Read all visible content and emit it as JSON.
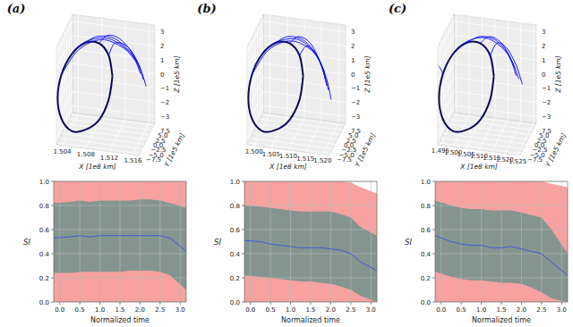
{
  "chart_data": [
    {
      "type": "line3d",
      "title": "(a)",
      "x_label": "X [1e8 km]",
      "y_label": "Y [1e5 km]",
      "z_label": "Z [1e5 km]",
      "xlim": [
        1.503,
        1.517
      ],
      "ylim": [
        -8.5,
        8.5
      ],
      "zlim": [
        -3.5,
        3.5
      ],
      "xticks": [
        1.504,
        1.508,
        1.512,
        1.516
      ],
      "yticks": [
        {
          "value": -7.5,
          "label": "−7.5"
        },
        {
          "value": -5,
          "label": "−5.0"
        },
        {
          "value": -2.5,
          "label": "−2.5"
        },
        {
          "value": 0,
          "label": "0.0"
        },
        2.5,
        {
          "value": 5,
          "label": "5.0"
        },
        7.5
      ],
      "zticks": [
        {
          "value": -3,
          "label": "−3"
        },
        {
          "value": -2,
          "label": "−2"
        },
        {
          "value": -1,
          "label": "−1"
        },
        0,
        1,
        2,
        3
      ],
      "grid": true,
      "series": [
        {
          "color": "#0a0a5a",
          "x": [
            1.51,
            1.5095,
            1.5083,
            1.5065,
            1.5048,
            1.5035,
            1.503,
            1.5035,
            1.5048,
            1.5065,
            1.5083,
            1.5095,
            1.51
          ],
          "y": [
            7.2,
            6.26,
            3.61,
            0,
            -3.61,
            -6.26,
            -7.2,
            -6.26,
            -3.61,
            0,
            3.61,
            6.26,
            7.2
          ],
          "z": [
            -0.35,
            1.23,
            2.38,
            2.8,
            2.38,
            1.23,
            -0.35,
            -1.93,
            -3.08,
            -3.4,
            -3.08,
            -1.93,
            -0.35
          ]
        },
        {
          "color": "#0000ff",
          "x": [
            1.5083,
            1.51,
            1.5125,
            1.515,
            1.5165
          ],
          "y": [
            3.61,
            2.5,
            1.0,
            0.0,
            -0.5
          ],
          "z": [
            2.38,
            3.2,
            3.2,
            2.2,
            0.8
          ]
        },
        {
          "color": "#0000ff",
          "x": [
            1.5065,
            1.5085,
            1.5115,
            1.5145,
            1.516
          ],
          "y": [
            0,
            0.5,
            0.5,
            0.0,
            -0.5
          ],
          "z": [
            2.8,
            3.3,
            3.3,
            2.4,
            1.2
          ]
        },
        {
          "color": "#0000ff",
          "x": [
            1.5048,
            1.507,
            1.5105,
            1.514,
            1.5158
          ],
          "y": [
            -3.61,
            -2.0,
            -0.5,
            0.0,
            0.3
          ],
          "z": [
            2.38,
            3.2,
            3.4,
            2.6,
            1.5
          ]
        },
        {
          "color": "#0000ff",
          "x": [
            1.5035,
            1.506,
            1.5095,
            1.513,
            1.515
          ],
          "y": [
            -6.26,
            -4.0,
            -1.5,
            0.0,
            1.0
          ],
          "z": [
            1.23,
            2.8,
            3.4,
            2.8,
            1.8
          ]
        },
        {
          "color": "#0000ff",
          "x": [
            1.5095,
            1.511,
            1.5135,
            1.5155,
            1.5168
          ],
          "y": [
            6.26,
            4.0,
            2.0,
            1.0,
            0.5
          ],
          "z": [
            1.23,
            2.5,
            2.6,
            1.6,
            0.2
          ]
        }
      ]
    },
    {
      "type": "line3d",
      "title": "(b)",
      "x_label": "X [1e8 km]",
      "y_label": "Y [1e5 km]",
      "z_label": "Z [1e5 km]",
      "xlim": [
        1.498,
        1.522
      ],
      "ylim": [
        -8.5,
        8.5
      ],
      "zlim": [
        -3.5,
        3.5
      ],
      "xticks": [
        {
          "value": 1.5,
          "label": "1.500"
        },
        1.505,
        {
          "value": 1.51,
          "label": "1.510"
        },
        1.515,
        {
          "value": 1.52,
          "label": "1.520"
        }
      ],
      "yticks": [
        {
          "value": -7.5,
          "label": "−7.5"
        },
        {
          "value": -5,
          "label": "−5.0"
        },
        {
          "value": -2.5,
          "label": "−2.5"
        },
        {
          "value": 0,
          "label": "0.0"
        },
        2.5,
        {
          "value": 5,
          "label": "5.0"
        },
        7.5
      ],
      "zticks": [
        {
          "value": -3,
          "label": "−3"
        },
        {
          "value": -2,
          "label": "−2"
        },
        {
          "value": -1,
          "label": "−1"
        },
        0,
        1,
        2,
        3
      ],
      "grid": true,
      "series": [
        {
          "color": "#0a0a5a",
          "x": [
            1.51,
            1.5092,
            1.507,
            1.504,
            1.501,
            1.4988,
            1.498,
            1.4988,
            1.501,
            1.504,
            1.507,
            1.5092,
            1.51
          ],
          "y": [
            7.2,
            6.26,
            3.61,
            0,
            -3.61,
            -6.26,
            -7.2,
            -6.26,
            -3.61,
            0,
            3.61,
            6.26,
            7.2
          ],
          "z": [
            -0.35,
            1.23,
            2.38,
            2.8,
            2.38,
            1.23,
            -0.35,
            -1.93,
            -3.08,
            -3.4,
            -3.08,
            -1.93,
            -0.35
          ]
        },
        {
          "color": "#0000ff",
          "x": [
            1.507,
            1.51,
            1.514,
            1.5175,
            1.5195
          ],
          "y": [
            3.61,
            2.5,
            1.0,
            0.0,
            -0.5
          ],
          "z": [
            2.38,
            3.1,
            2.9,
            1.5,
            0.0
          ]
        },
        {
          "color": "#0000ff",
          "x": [
            1.504,
            1.5075,
            1.5125,
            1.517,
            1.519
          ],
          "y": [
            0,
            0.5,
            0.5,
            0.0,
            -0.5
          ],
          "z": [
            2.8,
            3.3,
            3.1,
            1.8,
            0.3
          ]
        },
        {
          "color": "#0000ff",
          "x": [
            1.501,
            1.505,
            1.511,
            1.516,
            1.5185
          ],
          "y": [
            -3.61,
            -2.0,
            -0.5,
            0.0,
            0.3
          ],
          "z": [
            2.38,
            3.2,
            3.3,
            2.2,
            0.6
          ]
        },
        {
          "color": "#0000ff",
          "x": [
            1.4988,
            1.503,
            1.509,
            1.515,
            1.518
          ],
          "y": [
            -6.26,
            -4.0,
            -1.5,
            0.0,
            1.0
          ],
          "z": [
            1.23,
            2.8,
            3.3,
            2.5,
            1.0
          ]
        },
        {
          "color": "#0000ff",
          "x": [
            1.5092,
            1.512,
            1.5155,
            1.5185,
            1.52
          ],
          "y": [
            6.26,
            4.0,
            2.0,
            1.0,
            0.5
          ],
          "z": [
            1.23,
            2.3,
            2.0,
            0.6,
            -0.8
          ]
        }
      ]
    },
    {
      "type": "line3d",
      "title": "(c)",
      "x_label": "X [1e8 km]",
      "y_label": "Y [1e5 km]",
      "z_label": "Z [1e5 km]",
      "xlim": [
        1.494,
        1.526
      ],
      "ylim": [
        -8.5,
        8.5
      ],
      "zlim": [
        -3.5,
        3.5
      ],
      "xticks": [
        1.495,
        {
          "value": 1.5,
          "label": "1.500"
        },
        1.505,
        {
          "value": 1.51,
          "label": "1.510"
        },
        1.515,
        {
          "value": 1.52,
          "label": "1.520"
        },
        1.525
      ],
      "yticks": [
        {
          "value": -7.5,
          "label": "−7.5"
        },
        {
          "value": -5,
          "label": "−5.0"
        },
        {
          "value": -2.5,
          "label": "−2.5"
        },
        {
          "value": 0,
          "label": "0.0"
        },
        2.5,
        {
          "value": 5,
          "label": "5.0"
        },
        7.5
      ],
      "zticks": [
        {
          "value": -3,
          "label": "−3"
        },
        {
          "value": -2,
          "label": "−2"
        },
        {
          "value": -1,
          "label": "−1"
        },
        0,
        1,
        2,
        3
      ],
      "grid": true,
      "series": [
        {
          "color": "#0a0a5a",
          "x": [
            1.51,
            1.5089,
            1.506,
            1.502,
            1.498,
            1.4951,
            1.494,
            1.4951,
            1.498,
            1.502,
            1.506,
            1.5089,
            1.51
          ],
          "y": [
            7.2,
            6.26,
            3.61,
            0,
            -3.61,
            -6.26,
            -7.2,
            -6.26,
            -3.61,
            0,
            3.61,
            6.26,
            7.2
          ],
          "z": [
            -0.35,
            1.23,
            2.38,
            2.8,
            2.38,
            1.23,
            -0.35,
            -1.93,
            -3.08,
            -3.4,
            -3.08,
            -1.93,
            -0.35
          ]
        },
        {
          "color": "#0000ff",
          "x": [
            1.506,
            1.51,
            1.515,
            1.5195,
            1.5225
          ],
          "y": [
            3.61,
            2.5,
            1.0,
            0.0,
            -0.5
          ],
          "z": [
            2.38,
            3.1,
            3.0,
            2.0,
            0.8
          ]
        },
        {
          "color": "#0000ff",
          "x": [
            1.502,
            1.507,
            1.513,
            1.5185,
            1.5215
          ],
          "y": [
            0,
            0.5,
            0.5,
            0.0,
            -0.5
          ],
          "z": [
            2.8,
            3.3,
            3.2,
            2.3,
            1.0
          ]
        },
        {
          "color": "#0000ff",
          "x": [
            1.498,
            1.503,
            1.51,
            1.517,
            1.5205
          ],
          "y": [
            -3.61,
            -2.0,
            -0.5,
            0.0,
            0.3
          ],
          "z": [
            2.38,
            3.2,
            3.4,
            2.6,
            1.4
          ]
        },
        {
          "color": "#0000ff",
          "x": [
            1.5089,
            1.5125,
            1.517,
            1.521,
            1.5235
          ],
          "y": [
            6.26,
            4.0,
            2.0,
            1.0,
            0.5
          ],
          "z": [
            1.23,
            2.5,
            2.5,
            1.5,
            0.3
          ]
        },
        {
          "color": "#0000ff",
          "x": [
            1.4951,
            1.495,
            1.4948,
            1.4945,
            1.4942
          ],
          "y": [
            -6.26,
            -6.8,
            -7.4,
            -7.9,
            -8.4
          ],
          "z": [
            1.23,
            1.5,
            1.75,
            1.95,
            2.1
          ]
        }
      ]
    },
    {
      "type": "band",
      "x_label": "Normalized time",
      "y_label": "SI",
      "xlim": [
        -0.15,
        3.15
      ],
      "ylim": [
        0,
        1
      ],
      "xticks": [
        {
          "value": 0,
          "label": "0.0"
        },
        0.5,
        {
          "value": 1,
          "label": "1.0"
        },
        1.5,
        {
          "value": 2,
          "label": "2.0"
        },
        2.5,
        {
          "value": 3,
          "label": "3.0"
        }
      ],
      "yticks": [
        {
          "value": 0,
          "label": "0.0"
        },
        0.2,
        0.4,
        0.6,
        0.8,
        {
          "value": 1,
          "label": "1.0"
        }
      ],
      "grid": true,
      "x": [
        -0.15,
        0.25,
        0.5,
        0.75,
        1.0,
        1.25,
        1.5,
        1.75,
        2.0,
        2.25,
        2.5,
        2.75,
        3.15
      ],
      "series": [
        {
          "type": "area",
          "color": "#f7a1a1",
          "lower": [
            0,
            0,
            0,
            0,
            0,
            0,
            0,
            0,
            0,
            0,
            0,
            0,
            0
          ],
          "upper": [
            1,
            1,
            1,
            1,
            1,
            1,
            1,
            1,
            1,
            1,
            1,
            1,
            1
          ]
        },
        {
          "type": "area",
          "color": "#84958f",
          "lower": [
            0.24,
            0.24,
            0.25,
            0.25,
            0.25,
            0.25,
            0.25,
            0.26,
            0.26,
            0.26,
            0.25,
            0.22,
            0.1
          ],
          "upper": [
            0.82,
            0.83,
            0.84,
            0.83,
            0.84,
            0.84,
            0.84,
            0.84,
            0.85,
            0.85,
            0.84,
            0.82,
            0.78
          ]
        },
        {
          "type": "line",
          "color": "#3f5bd6",
          "values": [
            0.53,
            0.54,
            0.55,
            0.54,
            0.55,
            0.55,
            0.55,
            0.55,
            0.55,
            0.55,
            0.55,
            0.53,
            0.42
          ]
        }
      ]
    },
    {
      "type": "band",
      "x_label": "Normalized time",
      "y_label": "SI",
      "xlim": [
        -0.15,
        3.15
      ],
      "ylim": [
        0,
        1
      ],
      "xticks": [
        {
          "value": 0,
          "label": "0.0"
        },
        0.5,
        {
          "value": 1,
          "label": "1.0"
        },
        1.5,
        {
          "value": 2,
          "label": "2.0"
        },
        2.5,
        {
          "value": 3,
          "label": "3.0"
        }
      ],
      "yticks": [
        {
          "value": 0,
          "label": "0.0"
        },
        0.2,
        0.4,
        0.6,
        0.8,
        {
          "value": 1,
          "label": "1.0"
        }
      ],
      "grid": true,
      "x": [
        -0.15,
        0.25,
        0.5,
        0.75,
        1.0,
        1.25,
        1.5,
        1.75,
        2.0,
        2.25,
        2.5,
        2.75,
        3.15
      ],
      "series": [
        {
          "type": "area",
          "color": "#f7a1a1",
          "lower": [
            0,
            0,
            0,
            0,
            0,
            0,
            0,
            0,
            0,
            0,
            0,
            0,
            0
          ],
          "upper": [
            1,
            1,
            1,
            1,
            1,
            1,
            1,
            1,
            1,
            1,
            0.99,
            0.95,
            0.9
          ]
        },
        {
          "type": "area",
          "color": "#84958f",
          "lower": [
            0.22,
            0.21,
            0.2,
            0.19,
            0.18,
            0.17,
            0.17,
            0.16,
            0.15,
            0.13,
            0.1,
            0.05,
            0.0
          ],
          "upper": [
            0.8,
            0.79,
            0.78,
            0.77,
            0.76,
            0.75,
            0.75,
            0.75,
            0.75,
            0.73,
            0.7,
            0.62,
            0.55
          ]
        },
        {
          "type": "line",
          "color": "#3f5bd6",
          "values": [
            0.51,
            0.5,
            0.48,
            0.47,
            0.46,
            0.45,
            0.45,
            0.45,
            0.44,
            0.43,
            0.4,
            0.33,
            0.26
          ]
        }
      ]
    },
    {
      "type": "band",
      "x_label": "Normalized time",
      "y_label": "SI",
      "xlim": [
        -0.15,
        3.15
      ],
      "ylim": [
        0,
        1
      ],
      "xticks": [
        {
          "value": 0,
          "label": "0.0"
        },
        0.5,
        {
          "value": 1,
          "label": "1.0"
        },
        1.5,
        {
          "value": 2,
          "label": "2.0"
        },
        2.5,
        {
          "value": 3,
          "label": "3.0"
        }
      ],
      "yticks": [
        {
          "value": 0,
          "label": "0.0"
        },
        0.2,
        0.4,
        0.6,
        0.8,
        {
          "value": 1,
          "label": "1.0"
        }
      ],
      "grid": true,
      "x": [
        -0.15,
        0.25,
        0.5,
        0.75,
        1.0,
        1.25,
        1.5,
        1.75,
        2.0,
        2.25,
        2.5,
        2.75,
        3.15
      ],
      "series": [
        {
          "type": "area",
          "color": "#f7a1a1",
          "lower": [
            0,
            0,
            0,
            0,
            0,
            0,
            0,
            0,
            0,
            0,
            0,
            0,
            0
          ],
          "upper": [
            1,
            1,
            1,
            1,
            1,
            1,
            1,
            1,
            1,
            1,
            1,
            0.98,
            0.95
          ]
        },
        {
          "type": "area",
          "color": "#84958f",
          "lower": [
            0.25,
            0.21,
            0.19,
            0.18,
            0.18,
            0.17,
            0.16,
            0.16,
            0.15,
            0.12,
            0.08,
            0.03,
            0.0
          ],
          "upper": [
            0.84,
            0.8,
            0.78,
            0.77,
            0.77,
            0.76,
            0.76,
            0.76,
            0.74,
            0.72,
            0.7,
            0.6,
            0.4
          ]
        },
        {
          "type": "line",
          "color": "#3f5bd6",
          "values": [
            0.55,
            0.5,
            0.48,
            0.47,
            0.47,
            0.45,
            0.45,
            0.46,
            0.44,
            0.42,
            0.4,
            0.33,
            0.22
          ]
        }
      ]
    }
  ]
}
